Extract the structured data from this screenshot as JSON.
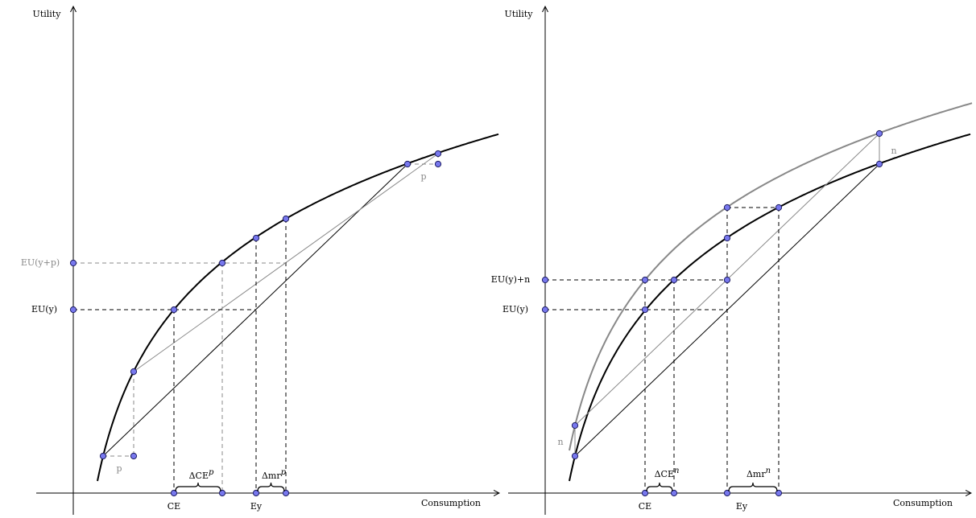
{
  "panels": [
    {
      "y_axis_label": "Utility",
      "x_axis_label": "Consumption",
      "y_labels": [
        "EU(y+p)",
        "EU(y)"
      ],
      "x_labels": [
        "CE",
        "Ey"
      ],
      "braces": [
        {
          "base": "ΔCE",
          "sup": "p"
        },
        {
          "base": "Δmr",
          "sup": "p"
        }
      ],
      "gap_labels": [
        "p",
        "p"
      ]
    },
    {
      "y_axis_label": "Utility",
      "x_axis_label": "Consumption",
      "y_labels": [
        "EU(y)+n",
        "EU(y)"
      ],
      "x_labels": [
        "CE",
        "Ey"
      ],
      "braces": [
        {
          "base": "ΔCE",
          "sup": "n"
        },
        {
          "base": "Δmr",
          "sup": "n"
        }
      ],
      "gap_labels": [
        "n",
        "n"
      ]
    }
  ]
}
